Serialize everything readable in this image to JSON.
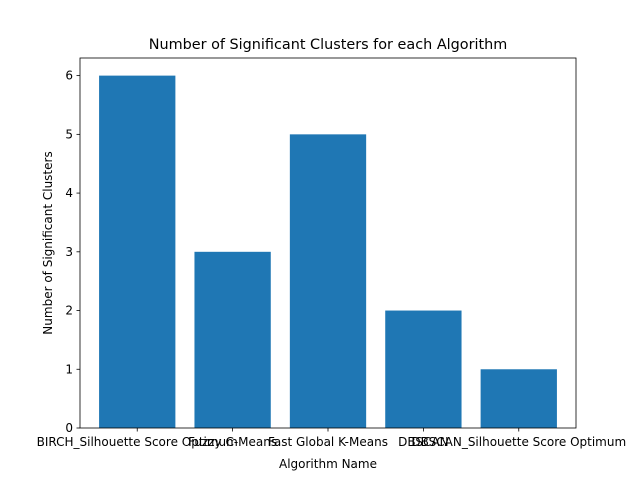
{
  "colors": {
    "bar": "#1f77b4",
    "axis": "#000000",
    "background": "#ffffff"
  },
  "chart_data": {
    "type": "bar",
    "title": "Number of Significant Clusters for each Algorithm",
    "xlabel": "Algorithm Name",
    "ylabel": "Number of Significant Clusters",
    "categories": [
      "BIRCH_Silhouette Score Optimum",
      "Fuzzy C-Means",
      "Fast Global K-Means",
      "DBSCAN",
      "DBSCAN_Silhouette Score Optimum"
    ],
    "values": [
      6,
      3,
      5,
      2,
      1
    ],
    "ylim": [
      0,
      6.3
    ],
    "yticks": [
      0,
      1,
      2,
      3,
      4,
      5,
      6
    ],
    "grid": false,
    "legend": "none"
  }
}
